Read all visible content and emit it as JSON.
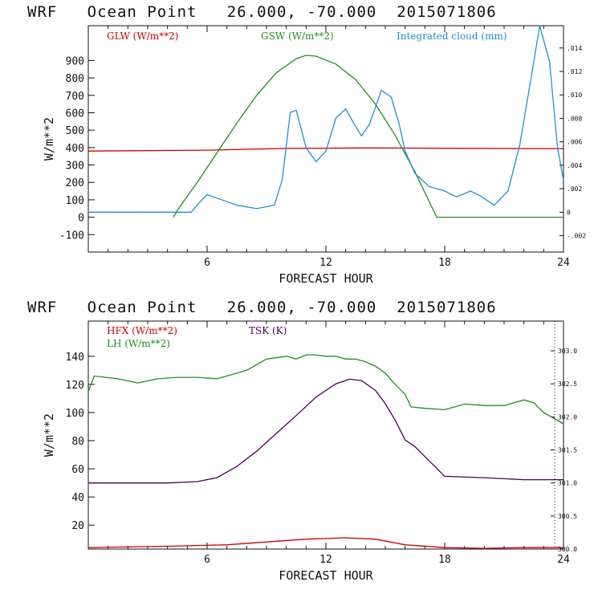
{
  "chart_data": [
    {
      "type": "line",
      "title": "WRF   Ocean Point   26.000, -70.000  2015071806",
      "xlabel": "FORECAST HOUR",
      "ylabel": "W/m**2",
      "xlim": [
        0,
        24
      ],
      "ylim": [
        -200,
        1100
      ],
      "xticks": [
        "6",
        "12",
        "18",
        "24"
      ],
      "yticks": [
        "-100",
        "0",
        "100",
        "200",
        "300",
        "400",
        "500",
        "600",
        "700",
        "800",
        "900"
      ],
      "y2_ticks": [
        "-.002",
        "0",
        ".002",
        ".004",
        ".006",
        ".008",
        ".010",
        ".012",
        ".014"
      ],
      "y2lim": [
        -0.0034,
        0.0159
      ],
      "series": [
        {
          "name": "GLW (W/m**2)",
          "color": "#cc0000",
          "axis": "left",
          "x": [
            0,
            6,
            10,
            14,
            18,
            22,
            24
          ],
          "y": [
            380,
            385,
            395,
            398,
            396,
            394,
            394
          ]
        },
        {
          "name": "GSW (W/m**2)",
          "color": "#228b22",
          "axis": "left",
          "x": [
            4.3,
            4.5,
            5.5,
            6.5,
            7.5,
            8.5,
            9.5,
            10.5,
            11,
            11.5,
            12.5,
            13.5,
            14.5,
            15.5,
            16.5,
            17.3,
            17.6,
            24
          ],
          "y": [
            0,
            40,
            200,
            370,
            540,
            700,
            830,
            910,
            930,
            925,
            880,
            790,
            650,
            470,
            260,
            70,
            0,
            0
          ]
        },
        {
          "name": "Integrated cloud (mm)",
          "color": "#1f8dd6",
          "axis": "right",
          "x": [
            0,
            5.2,
            5.6,
            6.0,
            6.5,
            7.5,
            8.5,
            9.4,
            9.8,
            10.2,
            10.5,
            11.0,
            11.5,
            12.0,
            12.5,
            13.0,
            13.4,
            13.8,
            14.2,
            14.8,
            15.3,
            15.7,
            16.0,
            16.5,
            17.2,
            18.0,
            18.6,
            19.3,
            19.8,
            20.5,
            21.2,
            21.8,
            22.4,
            22.8,
            23.3,
            23.7,
            24
          ],
          "y": [
            0,
            0,
            0.0008,
            0.0015,
            0.0012,
            0.0006,
            0.0003,
            0.0006,
            0.0028,
            0.0085,
            0.0087,
            0.0055,
            0.0043,
            0.0052,
            0.008,
            0.0088,
            0.0076,
            0.0065,
            0.0075,
            0.0104,
            0.0098,
            0.0075,
            0.0052,
            0.0033,
            0.0022,
            0.0018,
            0.0013,
            0.0018,
            0.0014,
            0.0006,
            0.0018,
            0.0058,
            0.0118,
            0.0159,
            0.0128,
            0.0055,
            0.0027
          ]
        }
      ]
    },
    {
      "type": "line",
      "title": "WRF   Ocean Point   26.000, -70.000  2015071806",
      "xlabel": "FORECAST HOUR",
      "ylabel": "W/m**2",
      "xlim": [
        0,
        24
      ],
      "ylim": [
        3,
        165
      ],
      "xticks": [
        "6",
        "12",
        "18",
        "24"
      ],
      "yticks": [
        "20",
        "40",
        "60",
        "80",
        "100",
        "120",
        "140"
      ],
      "y2_ticks": [
        "300.0",
        "300.5",
        "301.0",
        "301.5",
        "302.0",
        "302.5",
        "303.0"
      ],
      "y2lim": [
        300.0,
        303.45
      ],
      "series": [
        {
          "name": "HFX (W/m**2)",
          "color": "#cc0000",
          "axis": "left",
          "x": [
            0,
            4,
            7,
            9,
            11,
            13,
            14.5,
            16,
            18,
            20,
            22,
            24
          ],
          "y": [
            4,
            5,
            6,
            8,
            10,
            11,
            10,
            6,
            4,
            3.5,
            4,
            4
          ]
        },
        {
          "name": "LH (W/m**2)",
          "color": "#228b22",
          "axis": "left",
          "x": [
            0,
            0.3,
            1.5,
            2.5,
            3.5,
            4.5,
            5.5,
            6.5,
            7.0,
            7.5,
            8.0,
            9.0,
            10.0,
            10.5,
            11.0,
            11.5,
            12.0,
            12.5,
            13.0,
            13.5,
            14.0,
            14.5,
            15.0,
            15.5,
            16.0,
            16.3,
            17.0,
            18.0,
            19.0,
            20.0,
            21.0,
            21.5,
            22.0,
            22.5,
            23.0,
            23.5,
            24
          ],
          "y": [
            115,
            126,
            124,
            121,
            124,
            125,
            125,
            124,
            126,
            128,
            130,
            138,
            140,
            138,
            141,
            141,
            140,
            140,
            138,
            138,
            136,
            133,
            128,
            120,
            113,
            104,
            103,
            102,
            106,
            105,
            105,
            107,
            109,
            107,
            100,
            96,
            92
          ]
        },
        {
          "name": "TSK (K)",
          "color": "#4b0050",
          "axis": "right",
          "x": [
            0,
            2,
            4,
            5.5,
            6.5,
            7.5,
            8.5,
            9.5,
            10.5,
            11.5,
            12.5,
            13.2,
            13.8,
            14.5,
            15.0,
            15.5,
            16.0,
            16.5,
            17.0,
            17.5,
            18.0,
            20,
            22,
            24
          ],
          "y": [
            301.0,
            301.0,
            301.0,
            301.02,
            301.08,
            301.25,
            301.48,
            301.75,
            302.02,
            302.3,
            302.5,
            302.57,
            302.55,
            302.4,
            302.2,
            301.95,
            301.65,
            301.55,
            301.4,
            301.25,
            301.1,
            301.08,
            301.05,
            301.05
          ]
        }
      ]
    }
  ]
}
